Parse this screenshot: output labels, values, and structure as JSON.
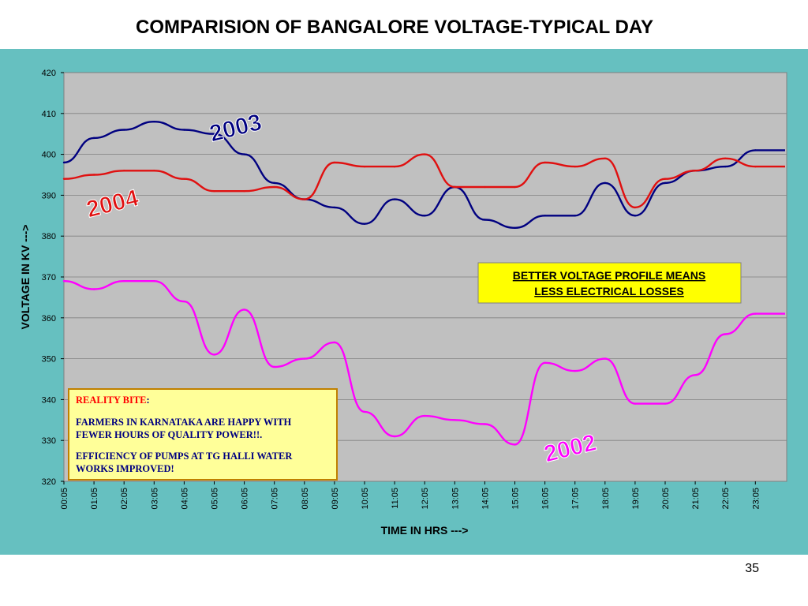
{
  "slide": {
    "title": "COMPARISION OF BANGALORE VOLTAGE-TYPICAL DAY",
    "page_number": "35",
    "panel_color": "#66c0c0",
    "plot_color": "#c0c0c0"
  },
  "chart_data": {
    "type": "line",
    "xlabel": "TIME IN HRS --->",
    "ylabel": "VOLTAGE IN KV --->",
    "ylim": [
      320,
      420
    ],
    "yticks": [
      320,
      330,
      340,
      350,
      360,
      370,
      380,
      390,
      400,
      410,
      420
    ],
    "grid": true,
    "categories": [
      "00:05",
      "01:05",
      "02:05",
      "03:05",
      "04:05",
      "05:05",
      "06:05",
      "07:05",
      "08:05",
      "09:05",
      "10:05",
      "11:05",
      "12:05",
      "13:05",
      "14:05",
      "15:05",
      "16:05",
      "17:05",
      "18:05",
      "19:05",
      "20:05",
      "21:05",
      "22:05",
      "23:05"
    ],
    "series": [
      {
        "name": "2003",
        "color": "#000080",
        "values": [
          398,
          404,
          406,
          408,
          406,
          405,
          400,
          393,
          389,
          387,
          383,
          389,
          385,
          392,
          384,
          382,
          385,
          385,
          393,
          385,
          393,
          396,
          397,
          401
        ]
      },
      {
        "name": "2004",
        "color": "#e01010",
        "values": [
          394,
          395,
          396,
          396,
          394,
          391,
          391,
          392,
          389,
          398,
          397,
          397,
          400,
          392,
          392,
          392,
          398,
          397,
          399,
          387,
          394,
          396,
          399,
          397
        ]
      },
      {
        "name": "2002",
        "color": "#ff00ff",
        "values": [
          369,
          367,
          369,
          369,
          364,
          351,
          362,
          348,
          350,
          354,
          337,
          331,
          336,
          335,
          334,
          329,
          349,
          347,
          350,
          339,
          339,
          346,
          356,
          361
        ]
      }
    ],
    "year_labels": [
      "2003",
      "2004",
      "2002"
    ],
    "callout": {
      "line1": "BETTER VOLTAGE PROFILE MEANS",
      "line2": "LESS ELECTRICAL LOSSES"
    },
    "note": {
      "heading": "REALITY BITE",
      "heading_colon": ":",
      "lines": [
        "FARMERS IN KARNATAKA ARE HAPPY WITH",
        "FEWER HOURS OF QUALITY POWER!!.",
        "EFFICIENCY OF PUMPS AT TG HALLI WATER",
        "WORKS IMPROVED!"
      ]
    }
  }
}
